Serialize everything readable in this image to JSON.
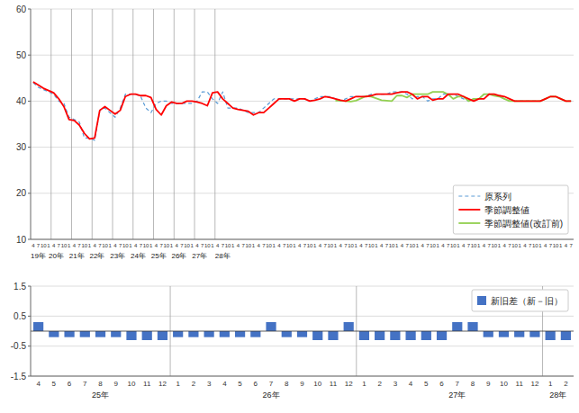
{
  "chart_data": [
    {
      "type": "line",
      "categories": [
        "4",
        "7",
        "10",
        "1",
        "4",
        "7",
        "10",
        "1",
        "4",
        "7",
        "10",
        "1",
        "4",
        "7",
        "10",
        "1",
        "4",
        "7",
        "10",
        "1",
        "4",
        "7",
        "10",
        "1",
        "4",
        "7",
        "10",
        "1",
        "4",
        "7",
        "10",
        "1",
        "4",
        "7",
        "10",
        "1",
        "4",
        "7",
        "10",
        "1",
        "4",
        "7",
        "10",
        "1",
        "4",
        "7",
        "10",
        "1",
        "4",
        "7",
        "10",
        "1",
        "4",
        "7",
        "10",
        "1",
        "4",
        "7",
        "10",
        "1",
        "4",
        "7",
        "10",
        "1",
        "4",
        "7",
        "10",
        "1",
        "4",
        "7",
        "10",
        "1",
        "4",
        "7",
        "10",
        "1",
        "4",
        "7",
        "10",
        "1",
        "4",
        "7",
        "10",
        "1",
        "4",
        "7",
        "10",
        "1",
        "4",
        "7",
        "10",
        "1",
        "4",
        "7",
        "10",
        "1",
        "4",
        "7",
        "10",
        "1",
        "4",
        "7",
        "10",
        "1",
        "4",
        "7"
      ],
      "series": [
        {
          "name": "原系列",
          "color": "#5B9BD5",
          "line_style": "dashed",
          "values": [
            44.0,
            43.0,
            42.5,
            42.0,
            41.5,
            40.0,
            39.5,
            36.5,
            36.0,
            35.5,
            32.0,
            32.0,
            31.5,
            38.0,
            38.5,
            37.5,
            36.5,
            38.5,
            41.5,
            41.5,
            41.5,
            41.0,
            38.5,
            37.5,
            39.5,
            40.0,
            40.0,
            39.5,
            39.5,
            39.5,
            39.5,
            39.5,
            40.0,
            42.0,
            42.0,
            40.5,
            39.5,
            42.0,
            38.5,
            38.5,
            38.5,
            38.0,
            37.5,
            37.5,
            37.5,
            38.5,
            39.5,
            40.5,
            40.5,
            40.5,
            40.5,
            40.5,
            40.5,
            40.5,
            40.0,
            40.5,
            41.0,
            41.0,
            41.0,
            40.5,
            40.0,
            40.5,
            41.0,
            41.0,
            41.0,
            41.0,
            41.5,
            41.5,
            41.5,
            41.5,
            42.0,
            42.0,
            42.0,
            41.5,
            40.5,
            41.0,
            41.0,
            40.0,
            40.5,
            40.5,
            41.5,
            41.5,
            41.5,
            41.0,
            40.5,
            40.0,
            40.5,
            40.5,
            41.5,
            41.5,
            41.5,
            41.0,
            40.5,
            40.0,
            40.0,
            40.0,
            40.0,
            40.0,
            40.0,
            40.0,
            40.5,
            41.0,
            41.0,
            40.5,
            40.0,
            40.0
          ]
        },
        {
          "name": "季節調整値",
          "color": "#FF0000",
          "line_style": "solid",
          "values": [
            44.2,
            43.5,
            42.8,
            42.3,
            41.8,
            40.5,
            38.8,
            36.0,
            35.8,
            34.8,
            33.0,
            31.8,
            32.0,
            38.0,
            38.8,
            38.0,
            37.2,
            38.0,
            41.0,
            41.5,
            41.5,
            41.2,
            41.2,
            40.8,
            38.2,
            37.0,
            39.0,
            39.8,
            39.5,
            39.5,
            40.0,
            40.0,
            39.8,
            39.5,
            39.0,
            41.8,
            42.0,
            40.5,
            39.5,
            38.5,
            38.2,
            38.0,
            37.8,
            37.0,
            37.5,
            37.5,
            38.5,
            39.5,
            40.5,
            40.5,
            40.5,
            40.0,
            40.5,
            40.5,
            40.0,
            40.2,
            40.5,
            41.0,
            40.8,
            40.5,
            40.2,
            40.0,
            40.5,
            41.0,
            41.0,
            41.0,
            41.2,
            41.5,
            41.5,
            41.5,
            41.5,
            41.8,
            42.0,
            42.0,
            41.5,
            40.5,
            41.0,
            41.0,
            40.2,
            40.5,
            40.5,
            41.5,
            41.5,
            41.5,
            41.0,
            40.5,
            40.0,
            40.5,
            40.5,
            41.5,
            41.5,
            41.2,
            41.0,
            40.5,
            40.0,
            40.0,
            40.0,
            40.0,
            40.0,
            40.0,
            40.5,
            41.0,
            41.0,
            40.5,
            40.0,
            40.0
          ]
        },
        {
          "name": "季節調整値(改訂前)",
          "color": "#92D050",
          "line_style": "solid",
          "values": [
            null,
            null,
            null,
            null,
            null,
            null,
            null,
            null,
            null,
            null,
            null,
            null,
            null,
            null,
            null,
            null,
            null,
            null,
            null,
            null,
            null,
            null,
            null,
            null,
            null,
            null,
            null,
            null,
            null,
            null,
            null,
            null,
            null,
            null,
            null,
            null,
            null,
            null,
            null,
            null,
            null,
            null,
            null,
            null,
            null,
            null,
            null,
            null,
            null,
            null,
            null,
            null,
            null,
            null,
            null,
            null,
            null,
            null,
            null,
            40.1,
            40.1,
            40.0,
            39.9,
            40.1,
            40.6,
            41.1,
            41.0,
            40.6,
            40.2,
            40.1,
            40.0,
            41.2,
            41.2,
            40.8,
            41.5,
            41.5,
            41.5,
            41.5,
            42.0,
            42.0,
            42.0,
            41.5,
            40.5,
            41.0,
            41.0,
            40.0,
            40.5,
            40.5,
            41.5,
            41.5,
            41.2,
            41.0,
            40.5,
            40.0,
            40.0,
            40.0,
            40.0,
            40.0,
            40.0,
            40.0,
            40.5,
            41.0,
            41.0,
            40.5,
            40.0,
            40.0
          ]
        }
      ],
      "ylim": [
        10,
        60
      ],
      "yticks": [
        10,
        20,
        30,
        40,
        50,
        60
      ],
      "grid": true,
      "legend": "lower right",
      "annotations": [
        {
          "x": 1.0,
          "text": "19年"
        },
        {
          "x": 4.5,
          "text": "20年"
        },
        {
          "x": 8.5,
          "text": "21年"
        },
        {
          "x": 12.5,
          "text": "22年"
        },
        {
          "x": 16.5,
          "text": "23年"
        },
        {
          "x": 20.5,
          "text": "24年"
        },
        {
          "x": 24.5,
          "text": "25年"
        },
        {
          "x": 28.5,
          "text": "26年"
        },
        {
          "x": 32.5,
          "text": "27年"
        },
        {
          "x": 37.0,
          "text": "28年"
        }
      ],
      "vlines": [
        3.5,
        7.5,
        11.5,
        15.5,
        19.5,
        23.5,
        27.5,
        31.5,
        35.5
      ]
    },
    {
      "type": "bar",
      "categories": [
        "4",
        "5",
        "6",
        "7",
        "8",
        "9",
        "10",
        "11",
        "12",
        "1",
        "2",
        "3",
        "4",
        "5",
        "6",
        "7",
        "8",
        "9",
        "10",
        "11",
        "12",
        "1",
        "2",
        "3",
        "4",
        "5",
        "6",
        "7",
        "8",
        "9",
        "10",
        "11",
        "12",
        "1",
        "2"
      ],
      "series": [
        {
          "name": "新旧差（新－旧）",
          "color": "#4472C4",
          "values": [
            0.3,
            -0.2,
            -0.2,
            -0.2,
            -0.2,
            -0.2,
            -0.3,
            -0.3,
            -0.3,
            -0.2,
            -0.2,
            -0.2,
            -0.2,
            -0.2,
            -0.2,
            0.3,
            -0.2,
            -0.2,
            -0.3,
            -0.3,
            0.3,
            -0.3,
            -0.3,
            -0.3,
            -0.3,
            -0.3,
            -0.3,
            0.3,
            0.3,
            -0.2,
            -0.2,
            -0.2,
            -0.2,
            -0.3,
            -0.3
          ]
        }
      ],
      "ylim": [
        -1.5,
        1.5
      ],
      "yticks": [
        -1.5,
        -0.5,
        0.5,
        1.5
      ],
      "grid": true,
      "legend": "upper right",
      "annotations": [
        {
          "x": 4.0,
          "text": "25年"
        },
        {
          "x": 15.0,
          "text": "26年"
        },
        {
          "x": 27.0,
          "text": "27年"
        },
        {
          "x": 33.5,
          "text": "28年"
        }
      ],
      "vlines": [
        8.5,
        20.5,
        32.5
      ]
    }
  ]
}
